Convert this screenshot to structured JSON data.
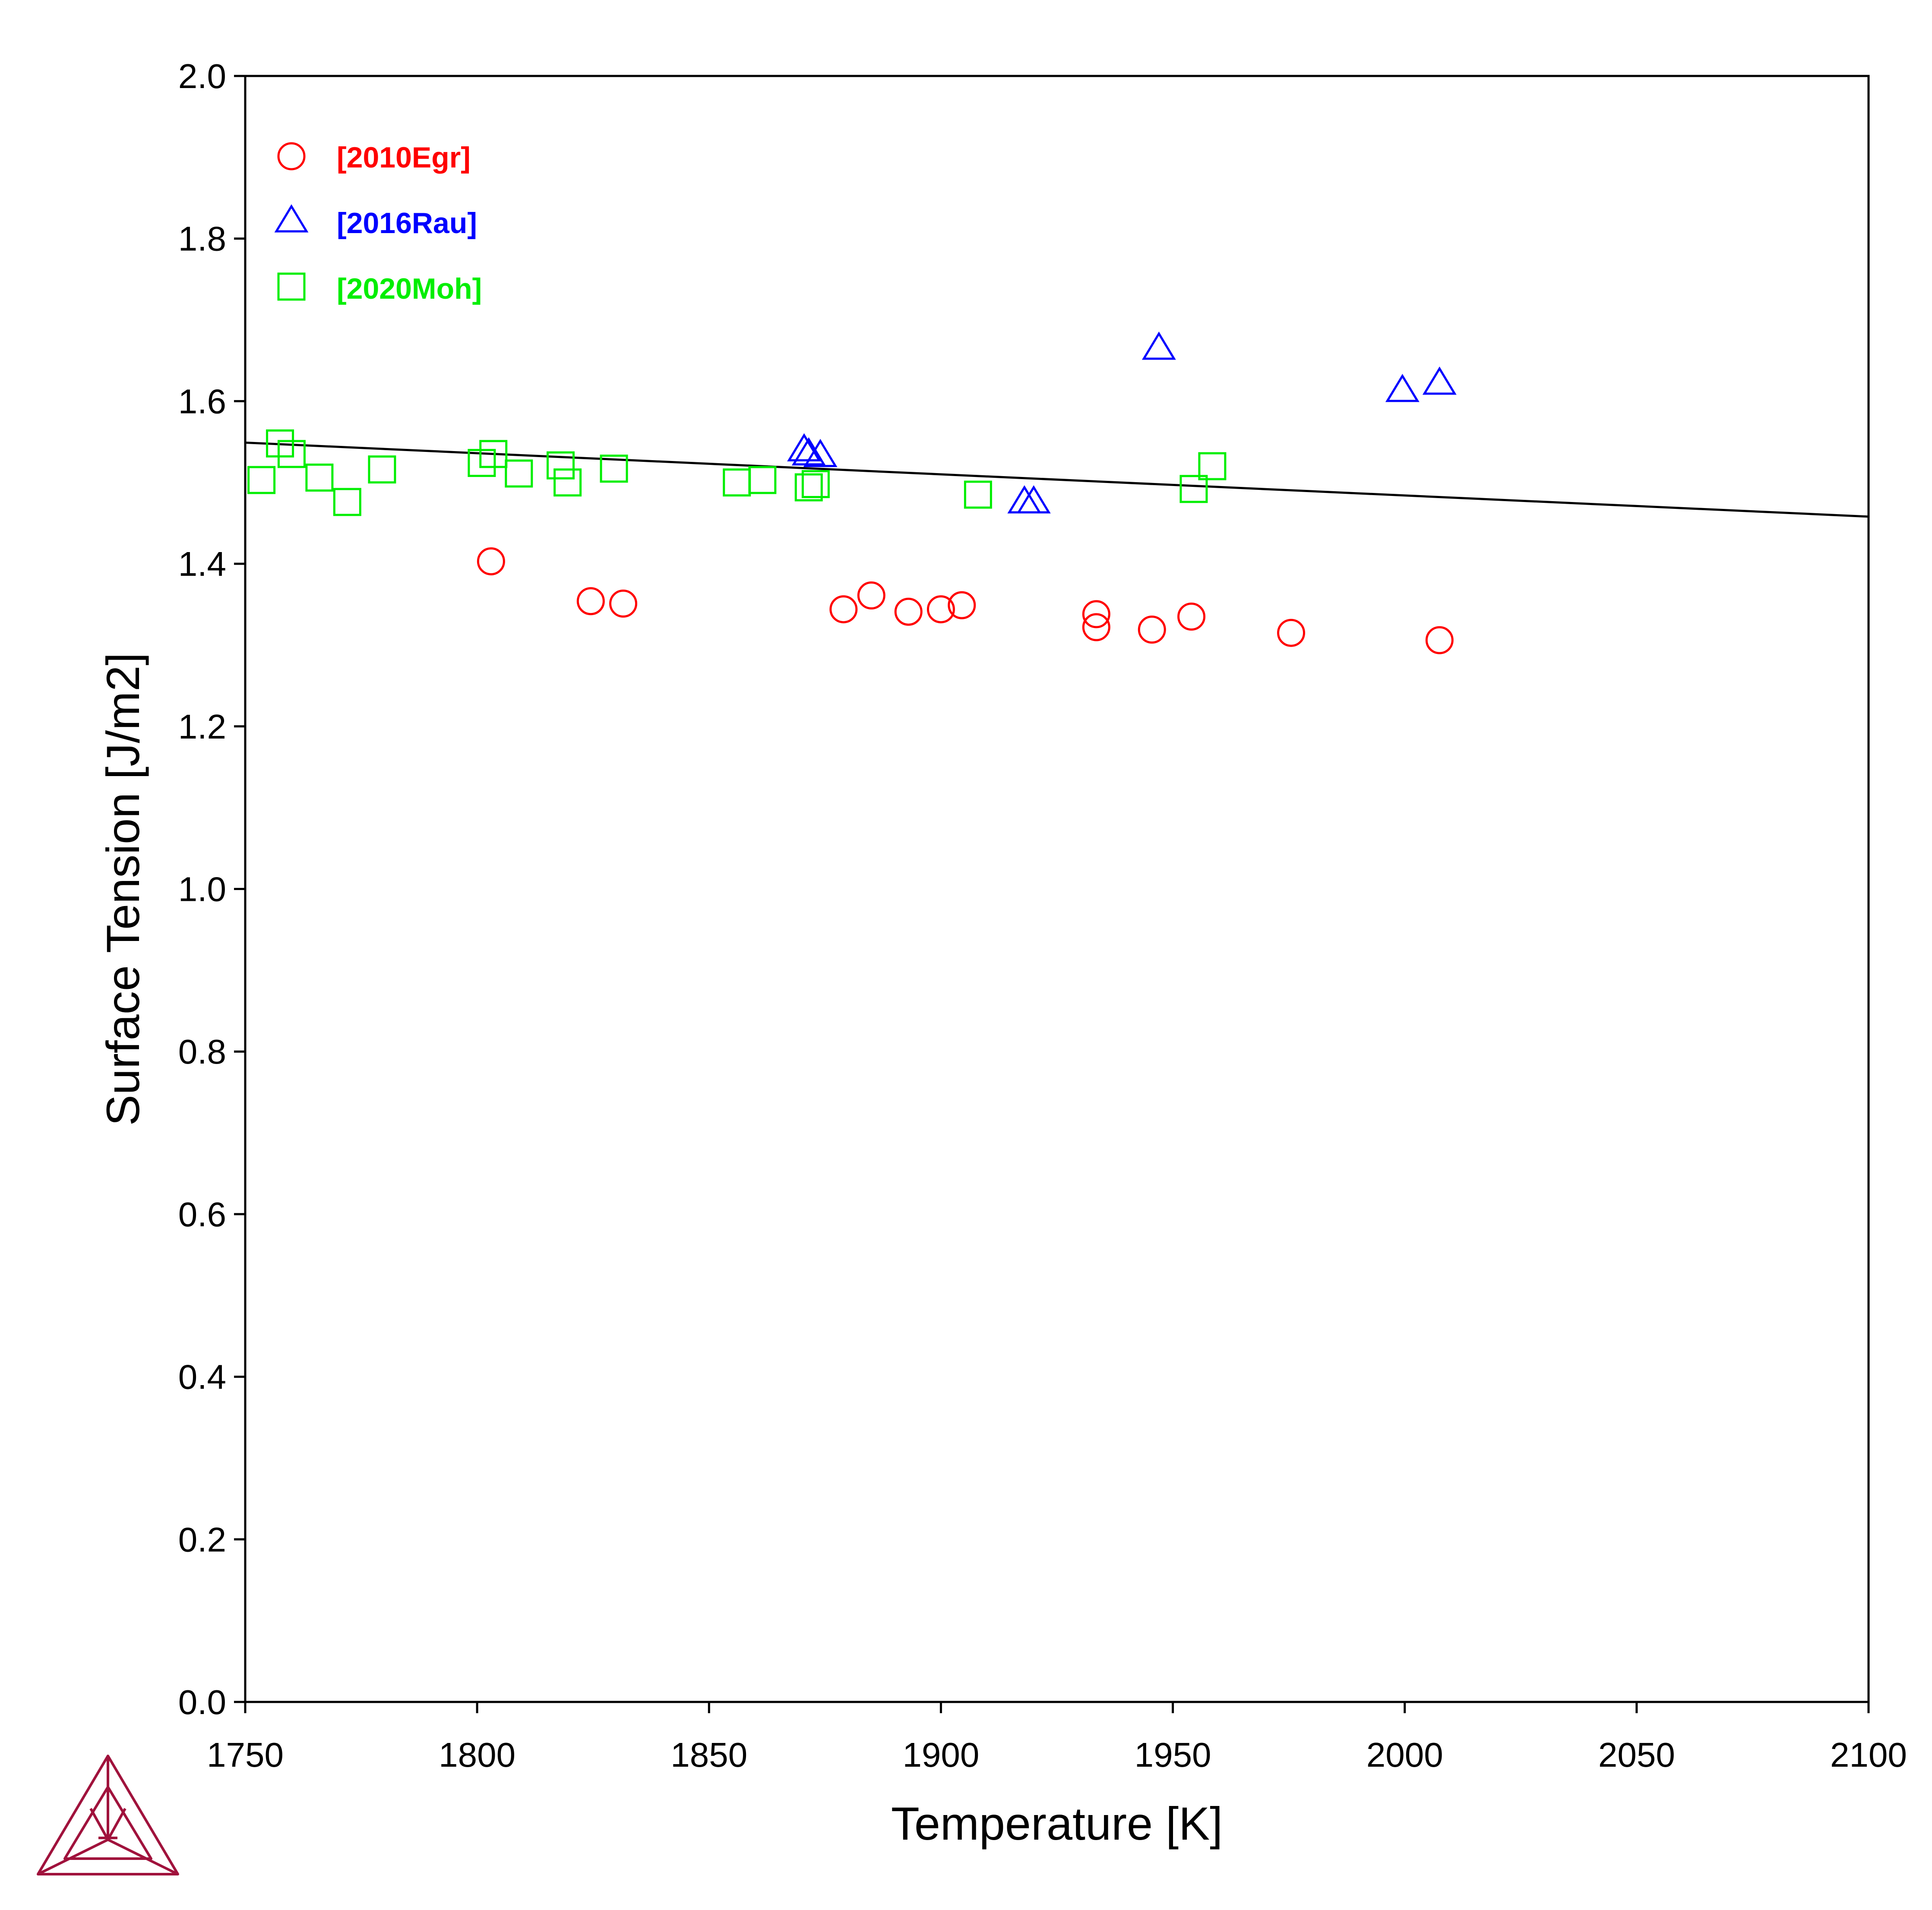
{
  "chart_data": {
    "type": "scatter",
    "xlabel": "Temperature [K]",
    "ylabel": "Surface Tension [J/m2]",
    "xlim": [
      1750,
      2100
    ],
    "ylim": [
      0.0,
      2.0
    ],
    "x_ticks": [
      "1750",
      "1800",
      "1850",
      "1900",
      "1950",
      "2000",
      "2050",
      "2100"
    ],
    "x_tick_values": [
      1750,
      1800,
      1850,
      1900,
      1950,
      2000,
      2050,
      2100
    ],
    "y_ticks": [
      "0.0",
      "0.2",
      "0.4",
      "0.6",
      "0.8",
      "1.0",
      "1.2",
      "1.4",
      "1.6",
      "1.8",
      "2.0"
    ],
    "y_tick_values": [
      0.0,
      0.2,
      0.4,
      0.6,
      0.8,
      1.0,
      1.2,
      1.4,
      1.6,
      1.8,
      2.0
    ],
    "grid": false,
    "legend_position": "top-left",
    "series": [
      {
        "name": "[2010Egr]",
        "marker": "circle",
        "color": "#ff0000",
        "points": [
          [
            1803,
            1.403
          ],
          [
            1824.5,
            1.354
          ],
          [
            1831.5,
            1.351
          ],
          [
            1879,
            1.344
          ],
          [
            1885,
            1.361
          ],
          [
            1893,
            1.341
          ],
          [
            1900,
            1.344
          ],
          [
            1904.5,
            1.349
          ],
          [
            1933.5,
            1.338
          ],
          [
            1933.5,
            1.322
          ],
          [
            1945.5,
            1.319
          ],
          [
            1954,
            1.335
          ],
          [
            1975.5,
            1.315
          ],
          [
            2007.5,
            1.306
          ]
        ]
      },
      {
        "name": "[2016Rau]",
        "marker": "triangle",
        "color": "#0000ff",
        "points": [
          [
            1870.5,
            1.54
          ],
          [
            1871.5,
            1.535
          ],
          [
            1874,
            1.533
          ],
          [
            1918,
            1.476
          ],
          [
            1920,
            1.476
          ],
          [
            1947,
            1.665
          ],
          [
            1999.5,
            1.613
          ],
          [
            2007.5,
            1.622
          ]
        ]
      },
      {
        "name": "[2020Moh]",
        "marker": "square",
        "color": "#00ee00",
        "points": [
          [
            1753.5,
            1.503
          ],
          [
            1757.5,
            1.548
          ],
          [
            1760,
            1.535
          ],
          [
            1766,
            1.506
          ],
          [
            1772,
            1.476
          ],
          [
            1779.5,
            1.516
          ],
          [
            1801,
            1.524
          ],
          [
            1803.5,
            1.535
          ],
          [
            1809,
            1.511
          ],
          [
            1818,
            1.521
          ],
          [
            1819.5,
            1.5
          ],
          [
            1829.5,
            1.517
          ],
          [
            1856,
            1.5
          ],
          [
            1861.5,
            1.503
          ],
          [
            1871.5,
            1.494
          ],
          [
            1873,
            1.498
          ],
          [
            1908,
            1.485
          ],
          [
            1954.5,
            1.492
          ],
          [
            1958.5,
            1.52
          ]
        ]
      }
    ],
    "lines": [
      {
        "color": "#000000",
        "points": [
          [
            1750,
            1.549
          ],
          [
            2100,
            1.458
          ]
        ]
      }
    ]
  }
}
